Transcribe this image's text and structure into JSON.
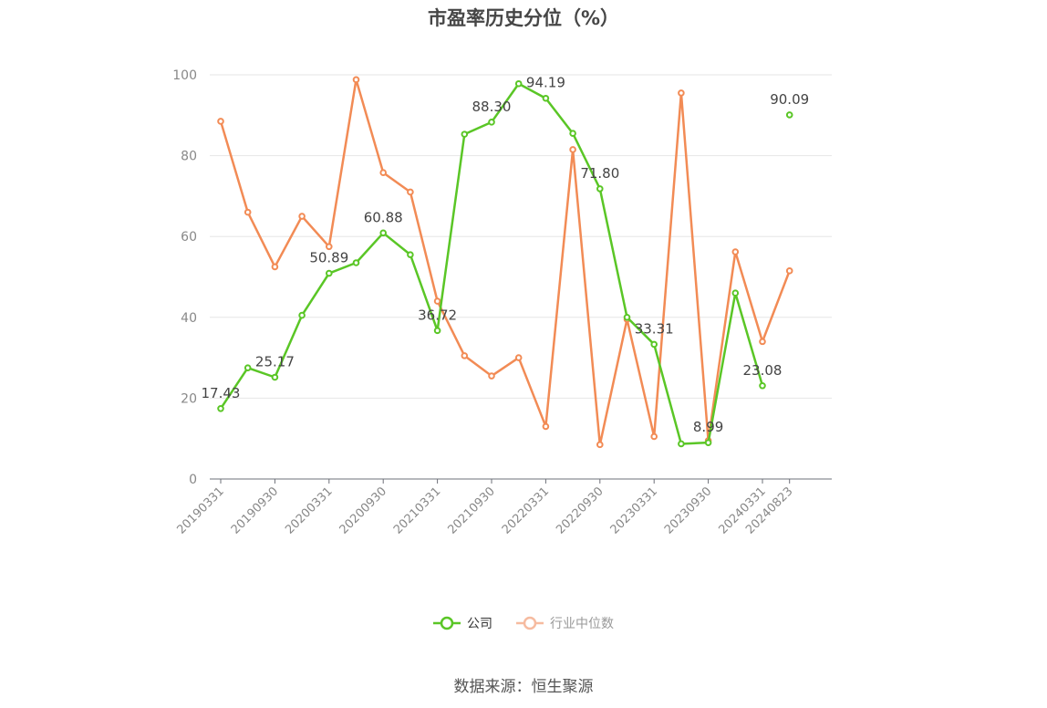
{
  "source_label": "数据来源：恒生聚源",
  "chart_data": {
    "type": "line",
    "title": "市盈率历史分位（%）",
    "xlabel": "",
    "ylabel": "",
    "ylim": [
      0,
      100
    ],
    "yticks": [
      0,
      20,
      40,
      60,
      80,
      100
    ],
    "grid": true,
    "legend_position": "bottom",
    "x": [
      "20190331",
      "20190630",
      "20190930",
      "20191231",
      "20200331",
      "20200630",
      "20200930",
      "20201231",
      "20210331",
      "20210630",
      "20210930",
      "20211231",
      "20220331",
      "20220630",
      "20220930",
      "20221231",
      "20230331",
      "20230630",
      "20230930",
      "20231231",
      "20240331",
      "20240823"
    ],
    "x_tick_labels": [
      "20190331",
      "20190930",
      "20200331",
      "20200930",
      "20210331",
      "20210930",
      "20220331",
      "20220930",
      "20230331",
      "20230930",
      "20240331",
      "20240823"
    ],
    "series": [
      {
        "name": "公司",
        "color": "#5ac626",
        "values": [
          17.43,
          27.5,
          25.17,
          40.5,
          50.89,
          53.5,
          60.88,
          55.5,
          36.72,
          85.3,
          88.3,
          97.8,
          94.19,
          85.5,
          71.8,
          40.0,
          33.31,
          8.7,
          8.99,
          46.0,
          23.08,
          90.09
        ],
        "value_labels": [
          "17.43",
          "",
          "25.17",
          "",
          "50.89",
          "",
          "60.88",
          "",
          "36.72",
          "",
          "88.30",
          "",
          "94.19",
          "",
          "71.80",
          "",
          "33.31",
          "",
          "8.99",
          "",
          "23.08",
          "90.09"
        ]
      },
      {
        "name": "行业中位数",
        "color": "#f28b55",
        "values": [
          88.5,
          66.0,
          52.5,
          65.0,
          57.5,
          98.8,
          75.8,
          71.0,
          44.0,
          30.5,
          25.5,
          30.0,
          13.0,
          81.5,
          8.5,
          39.5,
          10.5,
          95.5,
          9.5,
          56.2,
          34.0,
          51.5
        ]
      }
    ]
  }
}
